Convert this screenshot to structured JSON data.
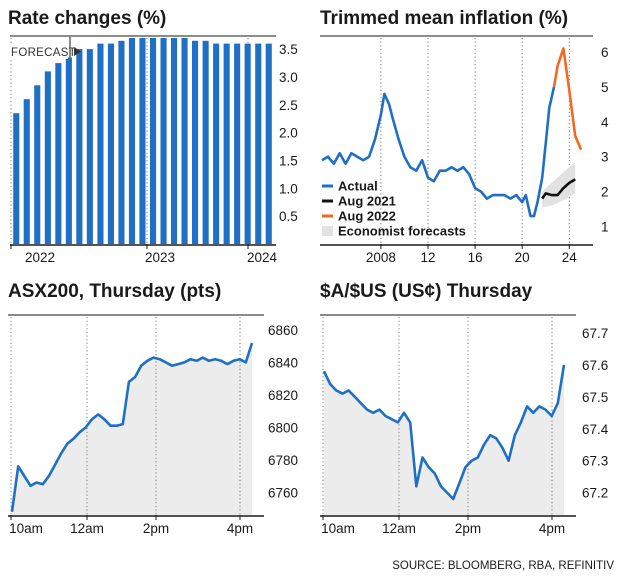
{
  "source": "SOURCE: BLOOMBERG, RBA, REFINITIV",
  "colors": {
    "blue": "#1f6fc5",
    "orange": "#f26a21",
    "black": "#111111",
    "band": "#e2e2e2",
    "area": "#ececec"
  },
  "chart_data": [
    {
      "id": "rate",
      "type": "bar",
      "title": "Rate changes (%)",
      "annotation": "FORECAST",
      "xticks": [
        "2022",
        "2023",
        "2024"
      ],
      "ylim": [
        0,
        3.7
      ],
      "yticks": [
        "0.5",
        "1.0",
        "1.5",
        "2.0",
        "2.5",
        "3.0",
        "3.5"
      ],
      "values": [
        2.35,
        2.6,
        2.85,
        3.1,
        3.25,
        3.35,
        3.5,
        3.5,
        3.6,
        3.6,
        3.65,
        3.7,
        3.7,
        3.7,
        3.7,
        3.7,
        3.7,
        3.65,
        3.65,
        3.6,
        3.6,
        3.6,
        3.6,
        3.6,
        3.6
      ]
    },
    {
      "id": "inflation",
      "type": "line",
      "title": "Trimmed mean inflation (%)",
      "xticks": [
        "2008",
        "12",
        "16",
        "20",
        "24"
      ],
      "yticks": [
        "1",
        "2",
        "3",
        "4",
        "5",
        "6"
      ],
      "ylim": [
        0.5,
        6.4
      ],
      "series": [
        {
          "name": "Actual",
          "color": "blue",
          "x": [
            2003,
            2003.5,
            2004,
            2004.5,
            2005,
            2005.5,
            2006,
            2006.5,
            2007,
            2007.5,
            2008,
            2008.3,
            2008.7,
            2009,
            2009.5,
            2010,
            2010.5,
            2011,
            2011.5,
            2012,
            2012.5,
            2013,
            2013.5,
            2014,
            2014.5,
            2015,
            2015.5,
            2016,
            2016.5,
            2017,
            2017.5,
            2018,
            2018.5,
            2019,
            2019.5,
            2020,
            2020.3,
            2020.7,
            2021,
            2021.3,
            2021.7,
            2022,
            2022.3,
            2022.7
          ],
          "y": [
            2.9,
            3.0,
            2.8,
            3.1,
            2.8,
            3.1,
            3.0,
            2.9,
            3.0,
            3.5,
            4.2,
            4.8,
            4.5,
            4.1,
            3.5,
            3.0,
            2.7,
            2.6,
            2.9,
            2.4,
            2.3,
            2.6,
            2.6,
            2.7,
            2.6,
            2.7,
            2.5,
            2.1,
            2.0,
            1.8,
            1.9,
            1.9,
            1.9,
            1.8,
            1.9,
            1.7,
            1.9,
            1.3,
            1.3,
            1.7,
            2.4,
            3.4,
            4.4,
            5.0
          ]
        },
        {
          "name": "Aug 2021",
          "color": "black",
          "x": [
            2021.7,
            2022,
            2022.5,
            2023,
            2023.5,
            2024,
            2024.5
          ],
          "y": [
            1.8,
            1.95,
            1.9,
            1.9,
            2.1,
            2.25,
            2.35
          ]
        },
        {
          "name": "Aug 2022",
          "color": "orange",
          "x": [
            2022.7,
            2023,
            2023.5,
            2024,
            2024.5,
            2025
          ],
          "y": [
            5.0,
            5.6,
            6.1,
            4.9,
            3.6,
            3.2
          ]
        }
      ],
      "band": {
        "name": "Economist forecasts",
        "x": [
          2021.7,
          2022.5,
          2023.5,
          2024.5
        ],
        "lower": [
          1.55,
          1.6,
          1.75,
          1.95
        ],
        "upper": [
          2.0,
          2.25,
          2.55,
          2.85
        ]
      }
    },
    {
      "id": "asx",
      "type": "line",
      "title": "ASX200, Thursday (pts)",
      "xticks": [
        "10am",
        "12am",
        "2pm",
        "4pm"
      ],
      "yticks": [
        "6760",
        "6780",
        "6800",
        "6820",
        "6840",
        "6860"
      ],
      "ylim": [
        6746,
        6868
      ],
      "series": [
        {
          "name": "ASX200",
          "color": "blue",
          "y": [
            6748,
            6776,
            6770,
            6764,
            6766,
            6765,
            6770,
            6777,
            6784,
            6790,
            6793,
            6797,
            6800,
            6805,
            6808,
            6805,
            6801,
            6801,
            6802,
            6828,
            6831,
            6838,
            6841,
            6843,
            6842,
            6840,
            6838,
            6839,
            6840,
            6842,
            6841,
            6843,
            6841,
            6842,
            6841,
            6839,
            6841,
            6842,
            6840,
            6852
          ]
        }
      ]
    },
    {
      "id": "aud",
      "type": "line",
      "title": "$A/$US (US¢) Thursday",
      "xticks": [
        "10am",
        "12am",
        "2pm",
        "4pm"
      ],
      "yticks": [
        "67.2",
        "67.3",
        "67.4",
        "67.5",
        "67.6",
        "67.7"
      ],
      "ylim": [
        67.13,
        67.75
      ],
      "series": [
        {
          "name": "AUD/USD",
          "color": "blue",
          "y": [
            67.58,
            67.54,
            67.52,
            67.51,
            67.52,
            67.5,
            67.48,
            67.46,
            67.45,
            67.46,
            67.44,
            67.43,
            67.42,
            67.45,
            67.42,
            67.22,
            67.31,
            67.28,
            67.26,
            67.22,
            67.2,
            67.18,
            67.23,
            67.28,
            67.3,
            67.31,
            67.35,
            67.38,
            67.37,
            67.34,
            67.3,
            67.38,
            67.42,
            67.47,
            67.45,
            67.47,
            67.46,
            67.44,
            67.48,
            67.6
          ]
        }
      ]
    }
  ]
}
